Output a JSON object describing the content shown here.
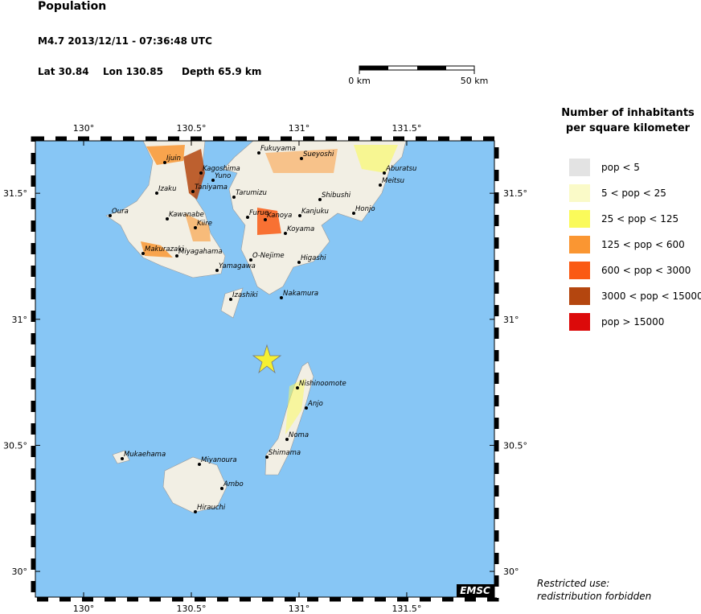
{
  "header": {
    "title": "Population",
    "event": "M4.7  2013/12/11 - 07:36:48 UTC",
    "lat": "Lat 30.84",
    "lon": "Lon 130.85",
    "depth": "Depth  65.9 km",
    "scale_start": "0 km",
    "scale_end": "50 km"
  },
  "map": {
    "lonlim": [
      129.776,
      131.907
    ],
    "latlim": [
      29.898,
      31.708
    ],
    "lon_ticks": [
      {
        "value": 130,
        "label": "130°"
      },
      {
        "value": 130.5,
        "label": "130.5°"
      },
      {
        "value": 131,
        "label": "131°"
      },
      {
        "value": 131.5,
        "label": "131.5°"
      }
    ],
    "lat_ticks": [
      {
        "value": 30,
        "label": "30°"
      },
      {
        "value": 30.5,
        "label": "30.5°"
      },
      {
        "value": 31,
        "label": "31°"
      },
      {
        "value": 31.5,
        "label": "31.5°"
      }
    ],
    "places": [
      "Ijuin",
      "Kagoshima",
      "Yuno",
      "Taniyama",
      "Izaku",
      "Kawanabe",
      "Kiire",
      "Makurazaki",
      "Miyagahama",
      "Yamagawa",
      "Oura",
      "Tarumizu",
      "Furue",
      "Kanoya",
      "Kanjuku",
      "Koyama",
      "Fukuyama",
      "Sueyoshi",
      "Shibushi",
      "Aburatsu",
      "Meitsu",
      "Honjo",
      "Higashi",
      "O-Nejime",
      "Nakamura",
      "Izashiki",
      "Nishinoomote",
      "Anjo",
      "Noma",
      "Shimama",
      "Mukaehama",
      "Miyanoura",
      "Ambo",
      "Hirauchi"
    ],
    "badge": "EMSC"
  },
  "legend": {
    "title": [
      "Number of inhabitants",
      "per square kilometer"
    ],
    "items": [
      {
        "label": "pop < 5",
        "color": "#e3e3e3"
      },
      {
        "label": "5 < pop < 25",
        "color": "#fafac8"
      },
      {
        "label": "25 < pop < 125",
        "color": "#fafa5a"
      },
      {
        "label": "125 < pop < 600",
        "color": "#fa9632"
      },
      {
        "label": "600 < pop < 3000",
        "color": "#fa5a14"
      },
      {
        "label": "3000 < pop < 15000",
        "color": "#b4460f"
      },
      {
        "label": "pop > 15000",
        "color": "#dc0a0a"
      }
    ]
  },
  "footer": [
    "Restricted use:",
    "redistribution forbidden"
  ]
}
